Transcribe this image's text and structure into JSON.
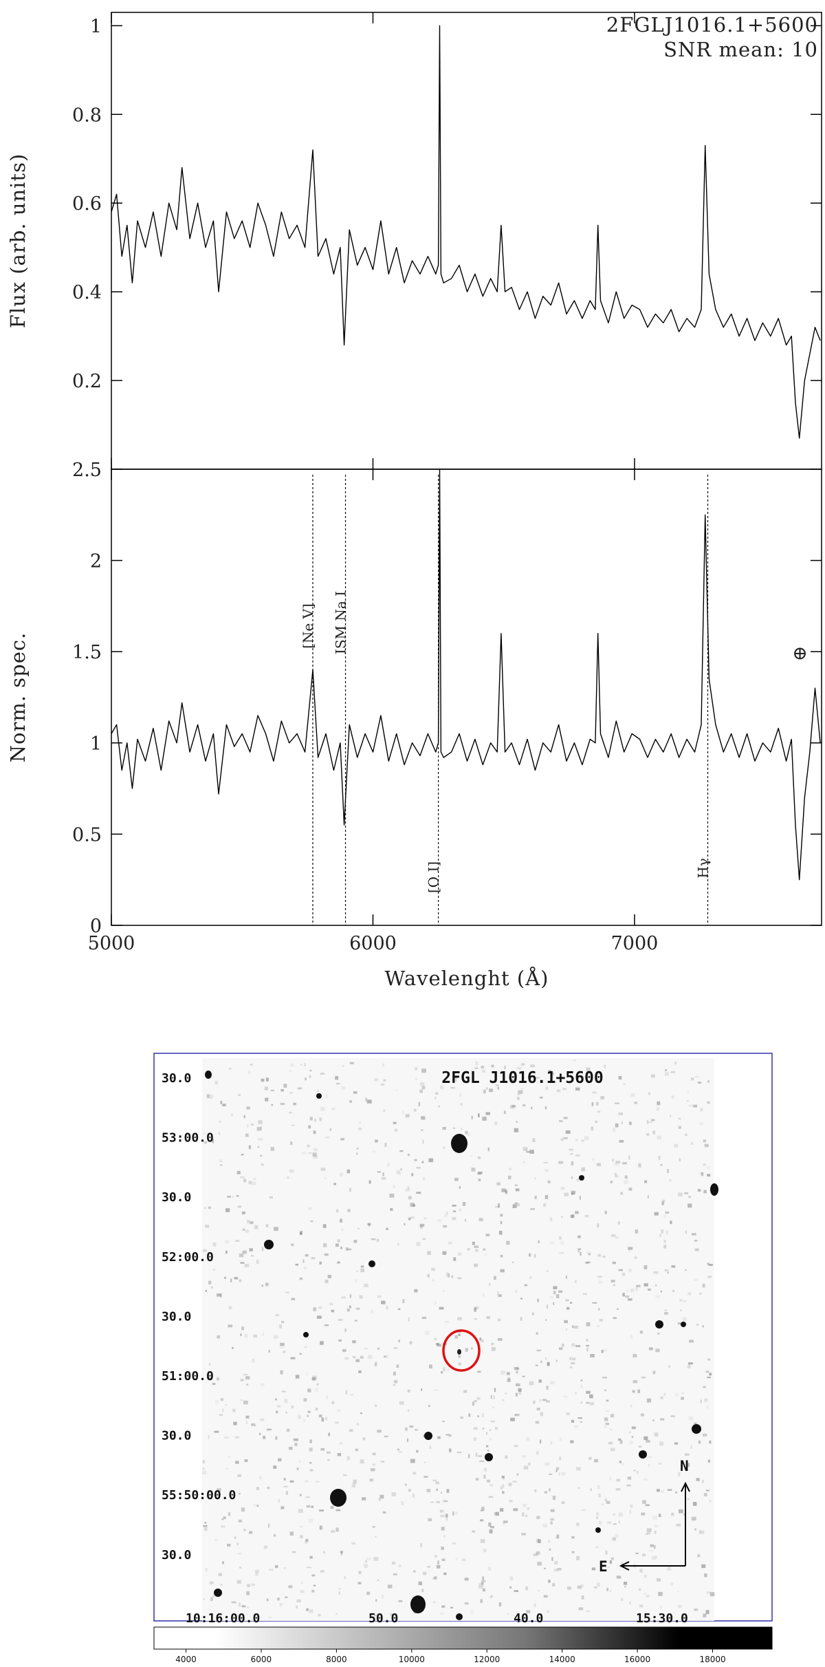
{
  "chart_data": [
    {
      "type": "line",
      "title": "2FGLJ1016.1+5600",
      "subtitle": "SNR mean: 10",
      "y_label": "Flux (arb. units)",
      "x": [
        5000,
        5020,
        5040,
        5060,
        5080,
        5100,
        5130,
        5160,
        5190,
        5220,
        5250,
        5270,
        5300,
        5330,
        5360,
        5390,
        5410,
        5440,
        5470,
        5500,
        5530,
        5560,
        5590,
        5620,
        5650,
        5680,
        5710,
        5740,
        5770,
        5790,
        5820,
        5850,
        5875,
        5890,
        5910,
        5940,
        5970,
        6000,
        6030,
        6060,
        6090,
        6120,
        6150,
        6180,
        6210,
        6240,
        6250,
        6255,
        6260,
        6270,
        6300,
        6330,
        6360,
        6390,
        6420,
        6450,
        6475,
        6490,
        6505,
        6530,
        6560,
        6590,
        6620,
        6650,
        6680,
        6710,
        6740,
        6770,
        6800,
        6830,
        6850,
        6860,
        6870,
        6900,
        6930,
        6960,
        6990,
        7020,
        7050,
        7080,
        7110,
        7140,
        7170,
        7200,
        7230,
        7255,
        7270,
        7285,
        7310,
        7340,
        7370,
        7400,
        7430,
        7460,
        7490,
        7520,
        7550,
        7580,
        7600,
        7615,
        7630,
        7650,
        7670,
        7690,
        7710
      ],
      "series": [
        {
          "name": "Flux",
          "color": "#000000",
          "values": [
            0.58,
            0.62,
            0.48,
            0.55,
            0.42,
            0.56,
            0.5,
            0.58,
            0.48,
            0.6,
            0.54,
            0.68,
            0.52,
            0.6,
            0.5,
            0.56,
            0.4,
            0.58,
            0.52,
            0.56,
            0.5,
            0.6,
            0.55,
            0.48,
            0.58,
            0.52,
            0.55,
            0.5,
            0.72,
            0.48,
            0.52,
            0.44,
            0.5,
            0.28,
            0.54,
            0.46,
            0.5,
            0.45,
            0.56,
            0.44,
            0.5,
            0.42,
            0.47,
            0.44,
            0.48,
            0.44,
            0.46,
            1.0,
            0.44,
            0.42,
            0.43,
            0.46,
            0.4,
            0.44,
            0.39,
            0.43,
            0.4,
            0.55,
            0.4,
            0.41,
            0.36,
            0.4,
            0.34,
            0.39,
            0.37,
            0.42,
            0.35,
            0.38,
            0.34,
            0.38,
            0.36,
            0.55,
            0.38,
            0.33,
            0.4,
            0.34,
            0.37,
            0.36,
            0.32,
            0.35,
            0.33,
            0.36,
            0.31,
            0.34,
            0.32,
            0.36,
            0.73,
            0.44,
            0.36,
            0.32,
            0.35,
            0.3,
            0.34,
            0.29,
            0.33,
            0.3,
            0.34,
            0.28,
            0.3,
            0.15,
            0.07,
            0.2,
            0.26,
            0.32,
            0.29
          ]
        }
      ],
      "xlim": [
        5000,
        7715
      ],
      "ylim": [
        0,
        1.03
      ],
      "yticks": [
        0.2,
        0.4,
        0.6,
        0.8,
        1
      ]
    },
    {
      "type": "line",
      "x_label": "Wavelenght (Å)",
      "y_label": "Norm. spec.",
      "x": [
        5000,
        5020,
        5040,
        5060,
        5080,
        5100,
        5130,
        5160,
        5190,
        5220,
        5250,
        5270,
        5300,
        5330,
        5360,
        5390,
        5410,
        5440,
        5470,
        5500,
        5530,
        5560,
        5590,
        5620,
        5650,
        5680,
        5710,
        5740,
        5770,
        5790,
        5820,
        5850,
        5875,
        5890,
        5910,
        5940,
        5970,
        6000,
        6030,
        6060,
        6090,
        6120,
        6150,
        6180,
        6210,
        6240,
        6250,
        6255,
        6260,
        6270,
        6300,
        6330,
        6360,
        6390,
        6420,
        6450,
        6475,
        6490,
        6505,
        6530,
        6560,
        6590,
        6620,
        6650,
        6680,
        6710,
        6740,
        6770,
        6800,
        6830,
        6850,
        6860,
        6870,
        6900,
        6930,
        6960,
        6990,
        7020,
        7050,
        7080,
        7110,
        7140,
        7170,
        7200,
        7230,
        7255,
        7270,
        7285,
        7310,
        7340,
        7370,
        7400,
        7430,
        7460,
        7490,
        7520,
        7550,
        7580,
        7600,
        7615,
        7630,
        7650,
        7670,
        7690,
        7710
      ],
      "series": [
        {
          "name": "Normalized",
          "color": "#000000",
          "values": [
            1.05,
            1.1,
            0.85,
            1.0,
            0.75,
            1.02,
            0.9,
            1.08,
            0.85,
            1.12,
            1.0,
            1.22,
            0.95,
            1.1,
            0.9,
            1.05,
            0.72,
            1.1,
            0.98,
            1.05,
            0.95,
            1.15,
            1.05,
            0.9,
            1.12,
            1.0,
            1.05,
            0.95,
            1.4,
            0.92,
            1.05,
            0.85,
            1.0,
            0.55,
            1.1,
            0.92,
            1.05,
            0.95,
            1.15,
            0.9,
            1.05,
            0.88,
            1.0,
            0.93,
            1.05,
            0.95,
            1.0,
            2.5,
            0.95,
            0.92,
            0.95,
            1.05,
            0.9,
            1.02,
            0.88,
            1.0,
            0.95,
            1.6,
            0.95,
            1.0,
            0.88,
            1.02,
            0.85,
            1.0,
            0.95,
            1.1,
            0.9,
            1.0,
            0.88,
            1.02,
            1.0,
            1.6,
            1.05,
            0.92,
            1.12,
            0.95,
            1.05,
            1.02,
            0.92,
            1.02,
            0.95,
            1.05,
            0.92,
            1.02,
            0.95,
            1.1,
            2.25,
            1.35,
            1.1,
            0.95,
            1.05,
            0.92,
            1.05,
            0.9,
            1.0,
            0.95,
            1.08,
            0.9,
            1.02,
            0.55,
            0.25,
            0.7,
            0.95,
            1.3,
            1.0
          ]
        }
      ],
      "annotations": [
        {
          "text": "[Ne V]",
          "x": 5770
        },
        {
          "text": "ISM Na I",
          "x": 5895
        },
        {
          "text": "[O I]",
          "x": 6250
        },
        {
          "text": "Hγ",
          "x": 7280
        }
      ],
      "telluric_symbol": "⊕",
      "xlim": [
        5000,
        7715
      ],
      "ylim": [
        0,
        2.5
      ],
      "xticks": [
        5000,
        6000,
        7000
      ],
      "yticks": [
        0,
        0.5,
        1,
        1.5,
        2,
        2.5
      ]
    }
  ],
  "finding_chart": {
    "title": "2FGL J1016.1+5600",
    "dec_labels": [
      "30.0",
      "53:00.0",
      "30.0",
      "52:00.0",
      "30.0",
      "51:00.0",
      "30.0",
      "55:50:00.0",
      "30.0"
    ],
    "ra_labels": [
      "10:16:00.0",
      "50.0",
      "40.0",
      "15:30.0"
    ],
    "compass": {
      "north": "N",
      "east": "E"
    },
    "colorbar": {
      "lim": [
        3150,
        19580
      ],
      "ticks": [
        4000,
        6000,
        8000,
        10000,
        12000,
        14000,
        16000,
        18000
      ]
    }
  }
}
